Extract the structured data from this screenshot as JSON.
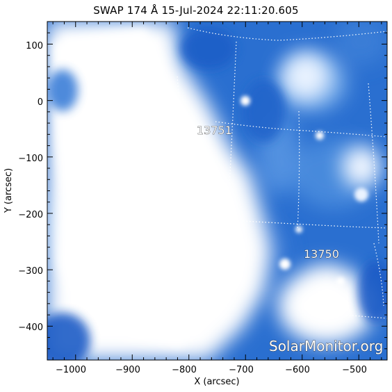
{
  "header": {
    "title": "SWAP 174 Å 15-Jul-2024 22:11:20.605"
  },
  "colors": {
    "frame": "#000000",
    "background_sun": "#ffffff",
    "plasma_deep": "#1f63c8",
    "plasma_mid": "#3f86db",
    "plasma_light": "#8cbcf0",
    "grid_line": "#ffffff"
  },
  "axes": {
    "xlabel": "X (arcsec)",
    "ylabel": "Y (arcsec)",
    "xlim": [
      -1050,
      -450
    ],
    "ylim": [
      -460,
      140
    ],
    "x_ticks": [
      "−1000",
      "−900",
      "−800",
      "−700",
      "−600",
      "−500"
    ],
    "y_ticks": [
      "100",
      "0",
      "−100",
      "−200",
      "−300",
      "−400"
    ]
  },
  "regions": [
    {
      "label": "13751",
      "x": -760,
      "y": -52
    },
    {
      "label": "13750",
      "x": -566,
      "y": -277
    }
  ],
  "watermark": "SolarMonitor.org"
}
